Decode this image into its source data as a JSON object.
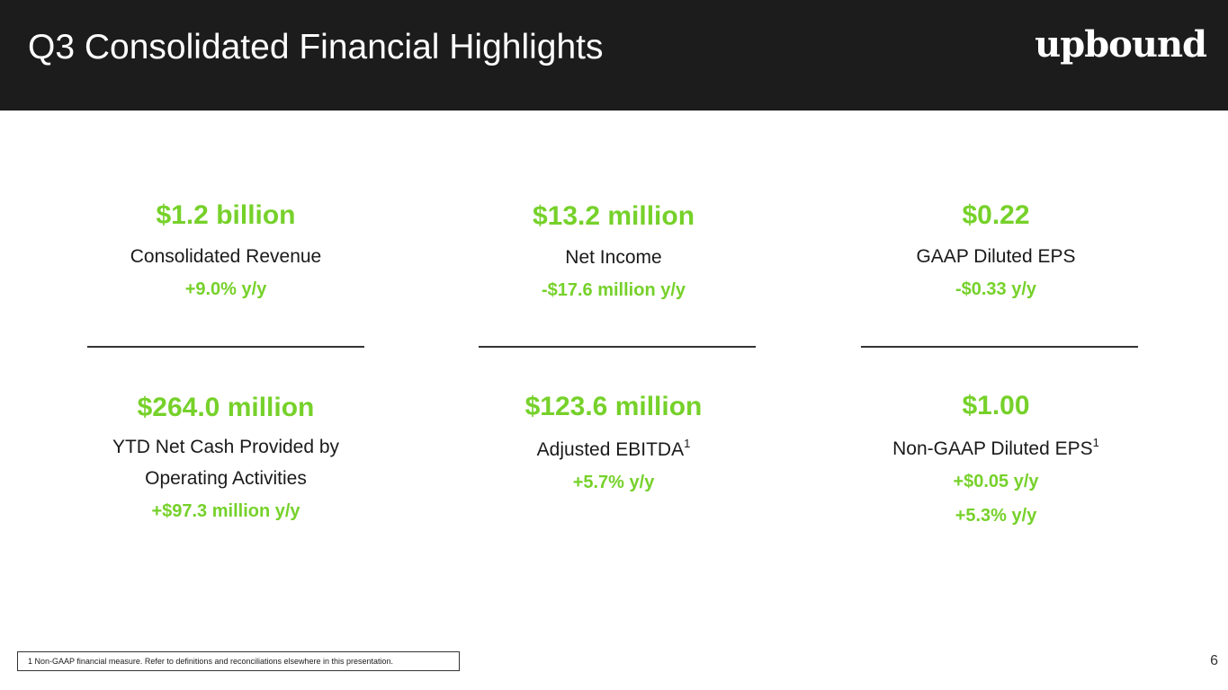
{
  "header": {
    "title": "Q3 Consolidated Financial Highlights",
    "logo_text": "upbound"
  },
  "metrics": [
    {
      "value": "$1.2 billion",
      "label": "Consolidated Revenue",
      "changes": [
        "+9.0% y/y"
      ]
    },
    {
      "value": "$13.2 million",
      "label": "Net Income",
      "changes": [
        "-$17.6 million y/y"
      ]
    },
    {
      "value": "$0.22",
      "label": "GAAP Diluted EPS",
      "changes": [
        "-$0.33 y/y"
      ]
    },
    {
      "value": "$264.0 million",
      "label_lines": [
        "YTD Net Cash Provided by",
        "Operating Activities"
      ],
      "changes": [
        "+$97.3 million y/y"
      ]
    },
    {
      "value": "$123.6 million",
      "label": "Adjusted EBITDA",
      "footnote_ref": "1",
      "changes": [
        "+5.7% y/y"
      ]
    },
    {
      "value": "$1.00",
      "label": "Non-GAAP Diluted EPS",
      "footnote_ref": "1",
      "changes": [
        "+$0.05 y/y",
        "+5.3% y/y"
      ]
    }
  ],
  "footnote": "1 Non-GAAP financial measure. Refer to definitions and reconciliations elsewhere in this presentation.",
  "page_number": "6",
  "colors": {
    "header_background": "#1c1c1c",
    "accent_green": "#76d12a",
    "text": "#1a1a1a"
  }
}
